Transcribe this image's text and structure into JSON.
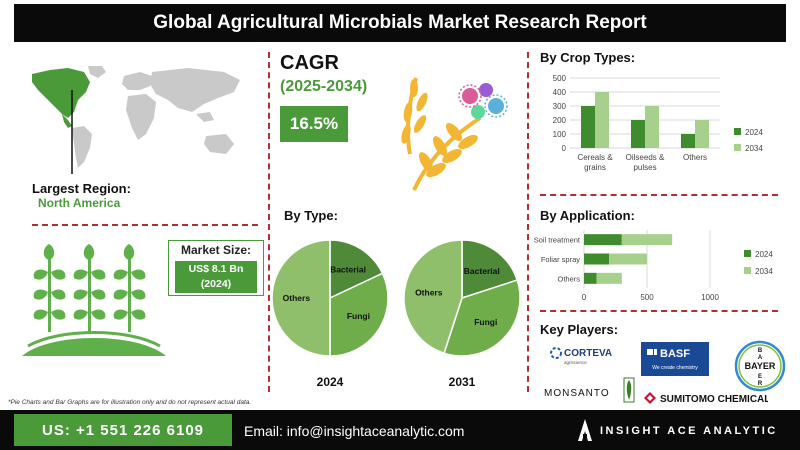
{
  "title": "Global Agricultural Microbials Market Research Report",
  "region": {
    "label": "Largest Region:",
    "value": "North America"
  },
  "cagr": {
    "title": "CAGR",
    "years": "(2025-2034)",
    "value": "16.5%"
  },
  "market_size": {
    "label": "Market Size:",
    "value_line1": "US$ 8.1 Bn",
    "value_line2": "(2024)"
  },
  "sections": {
    "crop": "By Crop Types:",
    "type": "By Type:",
    "application": "By Application:",
    "players": "Key Players:"
  },
  "players": [
    "CORTEVA",
    "BASF",
    "BAYER",
    "MONSANTO",
    "SUMITOMO CHEMICAL"
  ],
  "players_sub": {
    "corteva": "agriscience",
    "basf": "We create chemistry"
  },
  "footnote": "*Pie Charts and Bar Graphs are for illustration only and do not represent actual data.",
  "contact": {
    "phone": "US: +1 551 226 6109",
    "email": "Email: info@insightaceanalytic.com",
    "brand": "INSIGHT ACE ANALYTIC"
  },
  "colors": {
    "dark_green": "#3f8b2e",
    "light_green": "#a8d08d",
    "pie_dark": "#4e8a37",
    "pie_mid": "#6fad4a",
    "pie_light": "#8fbf6a",
    "accent": "#4a9a3a"
  },
  "chart_data": [
    {
      "type": "bar",
      "title": "By Crop Types:",
      "categories": [
        "Cereals & grains",
        "Oilseeds & pulses",
        "Others"
      ],
      "category_lines": [
        [
          "Cereals &",
          "grains"
        ],
        [
          "Oilseeds &",
          "pulses"
        ],
        [
          "Others"
        ]
      ],
      "series": [
        {
          "name": "2024",
          "values": [
            300,
            200,
            100
          ]
        },
        {
          "name": "2034",
          "values": [
            400,
            300,
            200
          ]
        }
      ],
      "ylim": [
        0,
        500
      ],
      "yticks": [
        0,
        100,
        200,
        300,
        400,
        500
      ],
      "legend": "right"
    },
    {
      "type": "bar",
      "orientation": "horizontal",
      "stacked": true,
      "title": "By Application:",
      "categories": [
        "Soil treatment",
        "Foliar spray",
        "Others"
      ],
      "series": [
        {
          "name": "2024",
          "values": [
            300,
            200,
            100
          ]
        },
        {
          "name": "2034",
          "values": [
            400,
            300,
            200
          ]
        }
      ],
      "xlim": [
        0,
        1000
      ],
      "xticks": [
        0,
        500,
        1000
      ],
      "legend": "right"
    },
    {
      "type": "pie",
      "caption": "2024",
      "slices": [
        {
          "label": "Bacterial",
          "value": 18
        },
        {
          "label": "Fungi",
          "value": 32
        },
        {
          "label": "Others",
          "value": 50
        }
      ]
    },
    {
      "type": "pie",
      "caption": "2031",
      "slices": [
        {
          "label": "Bacterial",
          "value": 20
        },
        {
          "label": "Fungi",
          "value": 35
        },
        {
          "label": "Others",
          "value": 45
        }
      ]
    }
  ]
}
